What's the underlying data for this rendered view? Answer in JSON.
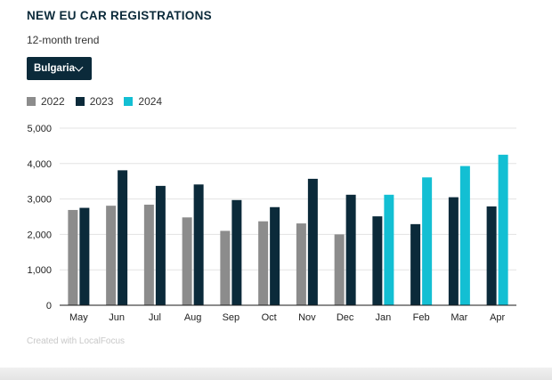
{
  "header": {
    "title": "NEW EU CAR REGISTRATIONS",
    "subtitle": "12-month trend"
  },
  "country_select": {
    "selected": "Bulgaria"
  },
  "credit": "Created with LocalFocus",
  "colors": {
    "2022": "#8c8c8c",
    "2023": "#0b2a3a",
    "2024": "#13bfd3"
  },
  "chart_data": {
    "type": "bar",
    "categories": [
      "May",
      "Jun",
      "Jul",
      "Aug",
      "Sep",
      "Oct",
      "Nov",
      "Dec",
      "Jan",
      "Feb",
      "Mar",
      "Apr"
    ],
    "series": [
      {
        "name": "2022",
        "values": [
          2690,
          2810,
          2840,
          2480,
          2100,
          2370,
          2310,
          2000,
          null,
          null,
          null,
          null
        ]
      },
      {
        "name": "2023",
        "values": [
          2750,
          3810,
          3370,
          3410,
          2970,
          2770,
          3570,
          3120,
          2510,
          2290,
          3050,
          2790
        ]
      },
      {
        "name": "2024",
        "values": [
          null,
          null,
          null,
          null,
          null,
          null,
          null,
          null,
          3120,
          3610,
          3930,
          4250
        ]
      }
    ],
    "yticks": [
      "0",
      "1,000",
      "2,000",
      "3,000",
      "4,000",
      "5,000"
    ],
    "ylim": [
      0,
      5000
    ],
    "grid": true,
    "legend": "top-left"
  }
}
